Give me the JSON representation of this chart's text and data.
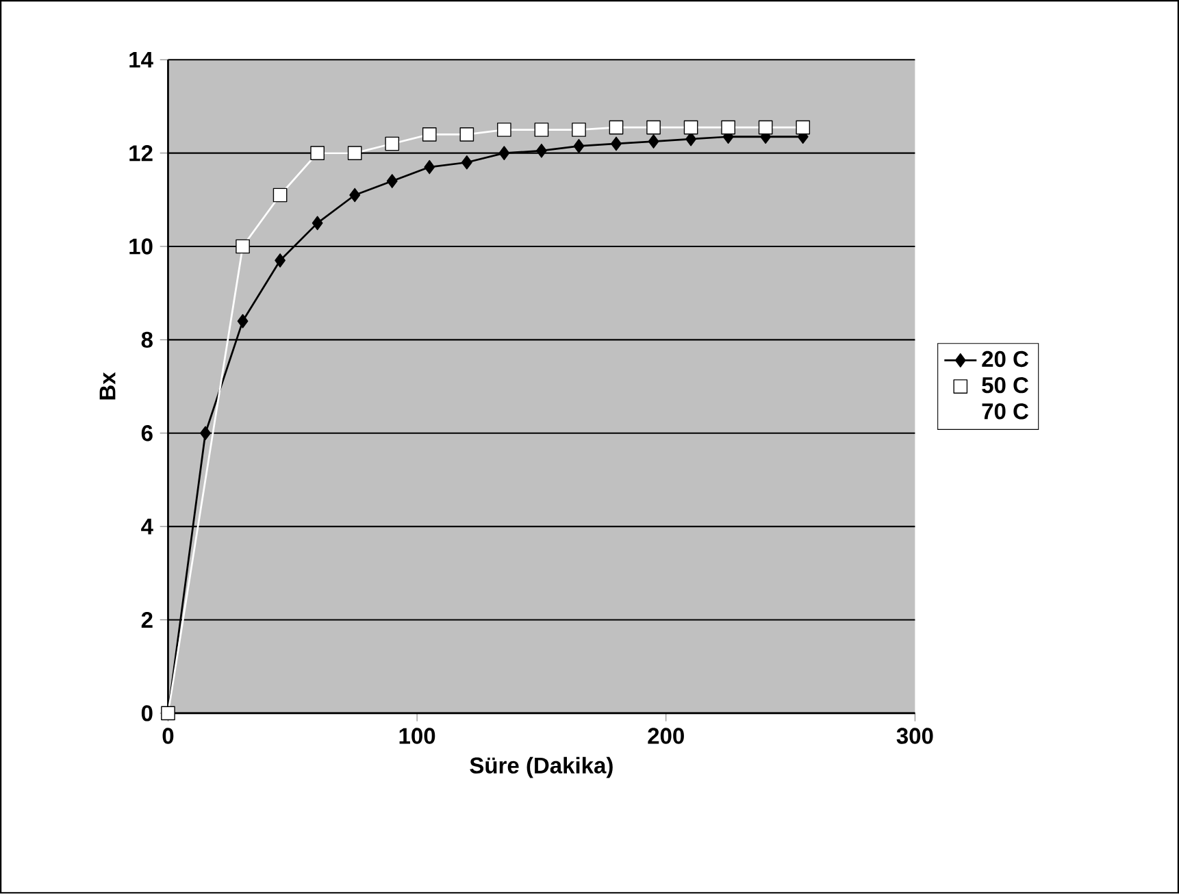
{
  "chart_data": {
    "type": "line",
    "xlabel": "Süre (Dakika)",
    "ylabel": "Bx",
    "xlim": [
      0,
      300
    ],
    "xticks": [
      0,
      100,
      200,
      300
    ],
    "ylim": [
      0,
      14
    ],
    "yticks": [
      0,
      2,
      4,
      6,
      8,
      10,
      12,
      14
    ],
    "grid": "y",
    "legend": "right",
    "series": [
      {
        "name": "20 C",
        "color": "#000000",
        "marker": "diamond",
        "x": [
          0,
          15,
          30,
          45,
          60,
          75,
          90,
          105,
          120,
          135,
          150,
          165,
          180,
          195,
          210,
          225,
          240,
          255
        ],
        "values": [
          0,
          6.0,
          8.4,
          9.7,
          10.5,
          11.1,
          11.4,
          11.7,
          11.8,
          12.0,
          12.05,
          12.15,
          12.2,
          12.25,
          12.3,
          12.35,
          12.35,
          12.35
        ]
      },
      {
        "name": "50 C",
        "color": "#ffffff",
        "marker": "square",
        "x": [
          0,
          30,
          45,
          60,
          75,
          90,
          105,
          120,
          135,
          150,
          165,
          180,
          195,
          210,
          225,
          240,
          255
        ],
        "values": [
          0,
          10.0,
          11.1,
          12.0,
          12.0,
          12.2,
          12.4,
          12.4,
          12.5,
          12.5,
          12.5,
          12.55,
          12.55,
          12.55,
          12.55,
          12.55,
          12.55
        ]
      },
      {
        "name": "70 C"
      }
    ]
  }
}
